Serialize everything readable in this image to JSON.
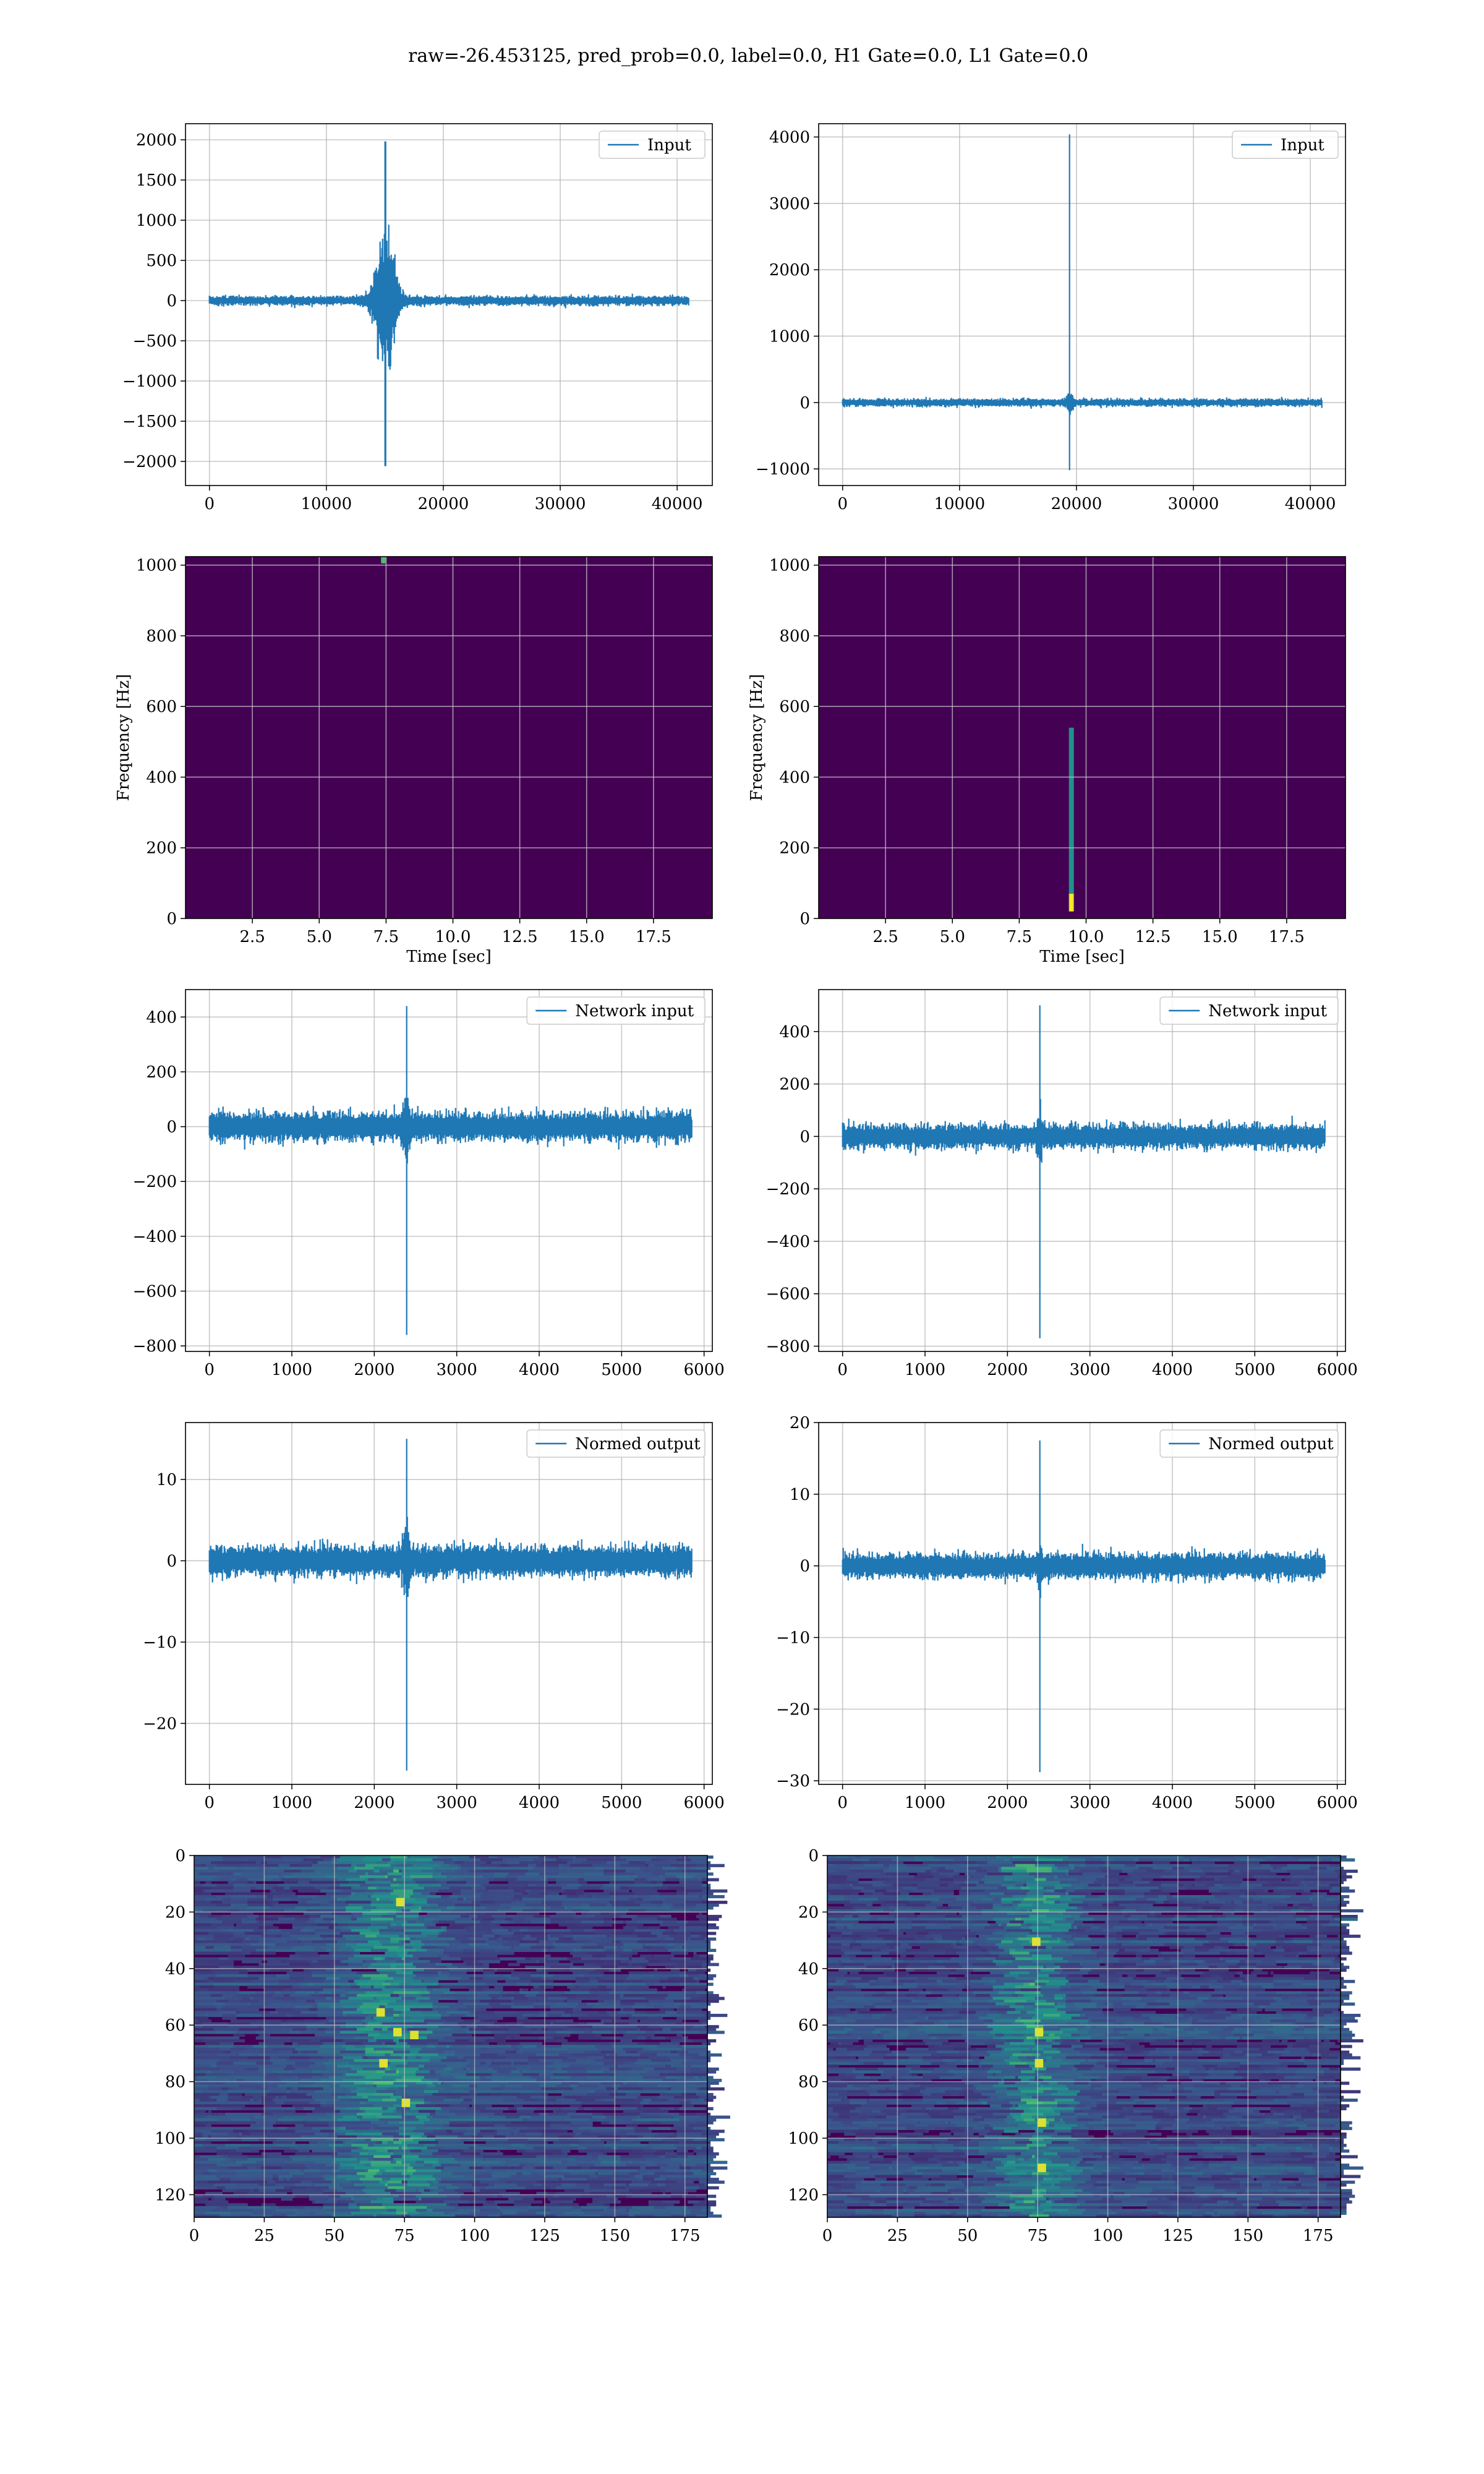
{
  "title": "raw=-26.453125, pred_prob=0.0, label=0.0, H1 Gate=0.0, L1 Gate=0.0",
  "colors": {
    "line": "#1f77b4",
    "grid": "#b0b0b0",
    "viridis_low": "#440154",
    "viridis_mid": "#21918c",
    "viridis_high": "#fde725"
  },
  "chart_data": [
    {
      "id": "input-h1",
      "type": "line",
      "legend": [
        "Input"
      ],
      "legend_position": "top-right",
      "grid": true,
      "xlim": [
        -2048,
        43008
      ],
      "ylim": [
        -2300,
        2200
      ],
      "xticks": [
        0,
        10000,
        20000,
        30000,
        40000
      ],
      "xtick_labels": [
        "0",
        "10000",
        "20000",
        "30000",
        "40000"
      ],
      "yticks": [
        -2000,
        -1500,
        -1000,
        -500,
        0,
        500,
        1000,
        1500,
        2000
      ],
      "ytick_labels": [
        "−2000",
        "−1500",
        "−1000",
        "−500",
        "0",
        "500",
        "1000",
        "1500",
        "2000"
      ],
      "xlabel": "",
      "ylabel": "",
      "series": [
        {
          "x_range": [
            0,
            40960
          ],
          "noise_amplitude": 50,
          "events": [
            {
              "x": 15050,
              "max": 1980,
              "min": -2060,
              "envelope_peak": 700,
              "envelope_width": 900
            }
          ]
        }
      ]
    },
    {
      "id": "input-l1",
      "type": "line",
      "legend": [
        "Input"
      ],
      "legend_position": "top-right",
      "grid": true,
      "xlim": [
        -2048,
        43008
      ],
      "ylim": [
        -1250,
        4200
      ],
      "xticks": [
        0,
        10000,
        20000,
        30000,
        40000
      ],
      "xtick_labels": [
        "0",
        "10000",
        "20000",
        "30000",
        "40000"
      ],
      "yticks": [
        -1000,
        0,
        1000,
        2000,
        3000,
        4000
      ],
      "ytick_labels": [
        "−1000",
        "0",
        "1000",
        "2000",
        "3000",
        "4000"
      ],
      "xlabel": "",
      "ylabel": "",
      "series": [
        {
          "x_range": [
            0,
            40960
          ],
          "noise_amplitude": 50,
          "events": [
            {
              "x": 19400,
              "max": 4040,
              "min": -1020,
              "envelope_peak": 80,
              "envelope_width": 300
            }
          ]
        }
      ]
    },
    {
      "id": "spectrogram-h1",
      "type": "heatmap",
      "grid": true,
      "xlim": [
        0,
        19.7
      ],
      "ylim": [
        0,
        1024
      ],
      "xticks": [
        2.5,
        5.0,
        7.5,
        10.0,
        12.5,
        15.0,
        17.5
      ],
      "xtick_labels": [
        "2.5",
        "5.0",
        "7.5",
        "10.0",
        "12.5",
        "15.0",
        "17.5"
      ],
      "yticks": [
        0,
        200,
        400,
        600,
        800,
        1000
      ],
      "ytick_labels": [
        "0",
        "200",
        "400",
        "600",
        "800",
        "1000"
      ],
      "xlabel": "Time [sec]",
      "ylabel": "Frequency [Hz]",
      "background_color": "#440154",
      "hotspots": [
        {
          "t": 7.4,
          "f_min": 1005,
          "f_max": 1024,
          "intensity": 0.6
        }
      ]
    },
    {
      "id": "spectrogram-l1",
      "type": "heatmap",
      "grid": true,
      "xlim": [
        0,
        19.7
      ],
      "ylim": [
        0,
        1024
      ],
      "xticks": [
        2.5,
        5.0,
        7.5,
        10.0,
        12.5,
        15.0,
        17.5
      ],
      "xtick_labels": [
        "2.5",
        "5.0",
        "7.5",
        "10.0",
        "12.5",
        "15.0",
        "17.5"
      ],
      "yticks": [
        0,
        200,
        400,
        600,
        800,
        1000
      ],
      "ytick_labels": [
        "0",
        "200",
        "400",
        "600",
        "800",
        "1000"
      ],
      "xlabel": "Time [sec]",
      "ylabel": "Frequency [Hz]",
      "background_color": "#440154",
      "hotspots": [
        {
          "t": 9.45,
          "f_min": 20,
          "f_max": 540,
          "intensity": 0.5
        },
        {
          "t": 9.45,
          "f_min": 20,
          "f_max": 70,
          "intensity": 0.9
        }
      ]
    },
    {
      "id": "network-input-h1",
      "type": "line",
      "legend": [
        "Network input"
      ],
      "legend_position": "top-right",
      "grid": true,
      "xlim": [
        -290,
        6100
      ],
      "ylim": [
        -820,
        500
      ],
      "xticks": [
        0,
        1000,
        2000,
        3000,
        4000,
        5000,
        6000
      ],
      "xtick_labels": [
        "0",
        "1000",
        "2000",
        "3000",
        "4000",
        "5000",
        "6000"
      ],
      "yticks": [
        -800,
        -600,
        -400,
        -200,
        0,
        200,
        400
      ],
      "ytick_labels": [
        "−800",
        "−600",
        "−400",
        "−200",
        "0",
        "200",
        "400"
      ],
      "xlabel": "",
      "ylabel": "",
      "series": [
        {
          "x_range": [
            0,
            5850
          ],
          "noise_amplitude": 45,
          "events": [
            {
              "x": 2390,
              "max": 440,
              "min": -760,
              "envelope_peak": 90,
              "envelope_width": 40
            }
          ]
        }
      ]
    },
    {
      "id": "network-input-l1",
      "type": "line",
      "legend": [
        "Network input"
      ],
      "legend_position": "top-right",
      "grid": true,
      "xlim": [
        -290,
        6100
      ],
      "ylim": [
        -820,
        560
      ],
      "xticks": [
        0,
        1000,
        2000,
        3000,
        4000,
        5000,
        6000
      ],
      "xtick_labels": [
        "0",
        "1000",
        "2000",
        "3000",
        "4000",
        "5000",
        "6000"
      ],
      "yticks": [
        -800,
        -600,
        -400,
        -200,
        0,
        200,
        400
      ],
      "ytick_labels": [
        "−800",
        "−600",
        "−400",
        "−200",
        "0",
        "200",
        "400"
      ],
      "xlabel": "",
      "ylabel": "",
      "series": [
        {
          "x_range": [
            0,
            5850
          ],
          "noise_amplitude": 40,
          "events": [
            {
              "x": 2390,
              "max": 500,
              "min": -770,
              "envelope_peak": 40,
              "envelope_width": 30
            }
          ]
        }
      ]
    },
    {
      "id": "normed-output-h1",
      "type": "line",
      "legend": [
        "Normed output"
      ],
      "legend_position": "top-right",
      "grid": true,
      "xlim": [
        -290,
        6100
      ],
      "ylim": [
        -27.5,
        17
      ],
      "xticks": [
        0,
        1000,
        2000,
        3000,
        4000,
        5000,
        6000
      ],
      "xtick_labels": [
        "0",
        "1000",
        "2000",
        "3000",
        "4000",
        "5000",
        "6000"
      ],
      "yticks": [
        -20,
        -10,
        0,
        10
      ],
      "ytick_labels": [
        "−20",
        "−10",
        "0",
        "10"
      ],
      "xlabel": "",
      "ylabel": "",
      "series": [
        {
          "x_range": [
            0,
            5850
          ],
          "noise_amplitude": 1.6,
          "events": [
            {
              "x": 2390,
              "max": 15,
              "min": -25.8,
              "envelope_peak": 3,
              "envelope_width": 40
            }
          ]
        }
      ]
    },
    {
      "id": "normed-output-l1",
      "type": "line",
      "legend": [
        "Normed output"
      ],
      "legend_position": "top-right",
      "grid": true,
      "xlim": [
        -290,
        6100
      ],
      "ylim": [
        -30.5,
        20
      ],
      "xticks": [
        0,
        1000,
        2000,
        3000,
        4000,
        5000,
        6000
      ],
      "xtick_labels": [
        "0",
        "1000",
        "2000",
        "3000",
        "4000",
        "5000",
        "6000"
      ],
      "yticks": [
        -30,
        -20,
        -10,
        0,
        10,
        20
      ],
      "ytick_labels": [
        "−30",
        "−20",
        "−10",
        "0",
        "10",
        "20"
      ],
      "xlabel": "",
      "ylabel": "",
      "series": [
        {
          "x_range": [
            0,
            5850
          ],
          "noise_amplitude": 1.5,
          "events": [
            {
              "x": 2390,
              "max": 17.5,
              "min": -28.8,
              "envelope_peak": 1.5,
              "envelope_width": 30
            }
          ]
        }
      ]
    },
    {
      "id": "feature-map-h1",
      "type": "heatmap",
      "grid": true,
      "xlim": [
        0,
        183
      ],
      "ylim": [
        128,
        0
      ],
      "xticks": [
        0,
        25,
        50,
        75,
        100,
        125,
        150,
        175
      ],
      "xtick_labels": [
        "0",
        "25",
        "50",
        "75",
        "100",
        "125",
        "150",
        "175"
      ],
      "yticks": [
        0,
        20,
        40,
        60,
        80,
        100,
        120
      ],
      "ytick_labels": [
        "0",
        "20",
        "40",
        "60",
        "80",
        "100",
        "120"
      ],
      "xlabel": "",
      "ylabel": "",
      "background_color": "#440154",
      "rows": 128,
      "cols": 183,
      "activity_center": 70,
      "activity_width": 18,
      "bright_spots": [
        {
          "col": 73,
          "row": 16
        },
        {
          "col": 72,
          "row": 62
        },
        {
          "col": 67,
          "row": 73
        },
        {
          "col": 75,
          "row": 87
        },
        {
          "col": 78,
          "row": 63
        },
        {
          "col": 66,
          "row": 55
        }
      ]
    },
    {
      "id": "feature-map-l1",
      "type": "heatmap",
      "grid": true,
      "xlim": [
        0,
        183
      ],
      "ylim": [
        128,
        0
      ],
      "xticks": [
        0,
        25,
        50,
        75,
        100,
        125,
        150,
        175
      ],
      "xtick_labels": [
        "0",
        "25",
        "50",
        "75",
        "100",
        "125",
        "150",
        "175"
      ],
      "yticks": [
        0,
        20,
        40,
        60,
        80,
        100,
        120
      ],
      "ytick_labels": [
        "0",
        "20",
        "40",
        "60",
        "80",
        "100",
        "120"
      ],
      "xlabel": "",
      "ylabel": "",
      "background_color": "#440154",
      "rows": 128,
      "cols": 183,
      "activity_center": 74,
      "activity_width": 14,
      "bright_spots": [
        {
          "col": 75,
          "row": 62
        },
        {
          "col": 75,
          "row": 73
        },
        {
          "col": 76,
          "row": 94
        },
        {
          "col": 74,
          "row": 30
        },
        {
          "col": 76,
          "row": 110
        }
      ]
    }
  ]
}
